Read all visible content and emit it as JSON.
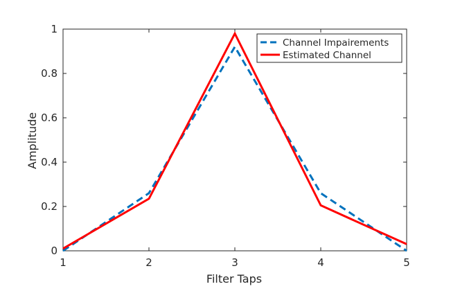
{
  "chart_data": {
    "type": "line",
    "title": "",
    "xlabel": "Filter Taps",
    "ylabel": "Amplitude",
    "xlim": [
      1,
      5
    ],
    "ylim": [
      0,
      1
    ],
    "xticks": [
      1,
      2,
      3,
      4,
      5
    ],
    "yticks": [
      0,
      0.2,
      0.4,
      0.6,
      0.8,
      1
    ],
    "xtick_labels": [
      "1",
      "2",
      "3",
      "4",
      "5"
    ],
    "ytick_labels": [
      "0",
      "0.2",
      "0.4",
      "0.6",
      "0.8",
      "1"
    ],
    "grid": false,
    "legend_position": "top-right",
    "x": [
      1,
      2,
      3,
      4,
      5
    ],
    "series": [
      {
        "name": "Channel Impairements",
        "values": [
          0.0,
          0.26,
          0.92,
          0.26,
          0.0
        ],
        "color": "#0072BD",
        "style": "dashed"
      },
      {
        "name": "Estimated Channel",
        "values": [
          0.01,
          0.235,
          0.98,
          0.205,
          0.03
        ],
        "color": "#FF0000",
        "style": "solid"
      }
    ]
  }
}
